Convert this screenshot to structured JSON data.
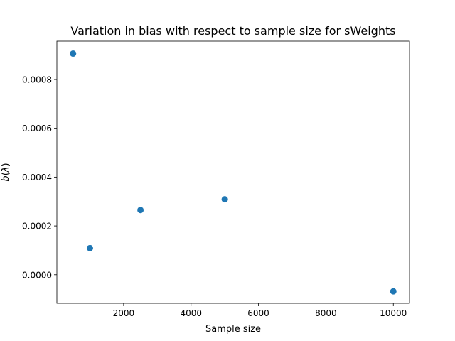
{
  "chart_data": {
    "type": "scatter",
    "title": "Variation in bias with respect to sample size for sWeights",
    "xlabel": "Sample size",
    "ylabel": "b(λ)",
    "ylabel_var": "b",
    "ylabel_paren_open": "(",
    "ylabel_lambda": "λ",
    "ylabel_paren_close": ")",
    "xlim": [
      20,
      10480
    ],
    "ylim": [
      -0.000117,
      0.000957
    ],
    "xticks": [
      2000,
      4000,
      6000,
      8000,
      10000
    ],
    "xtick_labels": [
      "2000",
      "4000",
      "6000",
      "8000",
      "10000"
    ],
    "yticks": [
      0.0,
      0.0002,
      0.0004,
      0.0006,
      0.0008
    ],
    "ytick_labels": [
      "0.0000",
      "0.0002",
      "0.0004",
      "0.0006",
      "0.0008"
    ],
    "grid": false,
    "marker_color": "#1f77b4",
    "points": [
      {
        "x": 500,
        "y": 0.000906
      },
      {
        "x": 1000,
        "y": 0.000109
      },
      {
        "x": 2500,
        "y": 0.000265
      },
      {
        "x": 5000,
        "y": 0.000309
      },
      {
        "x": 10000,
        "y": -6.8e-05
      }
    ]
  }
}
